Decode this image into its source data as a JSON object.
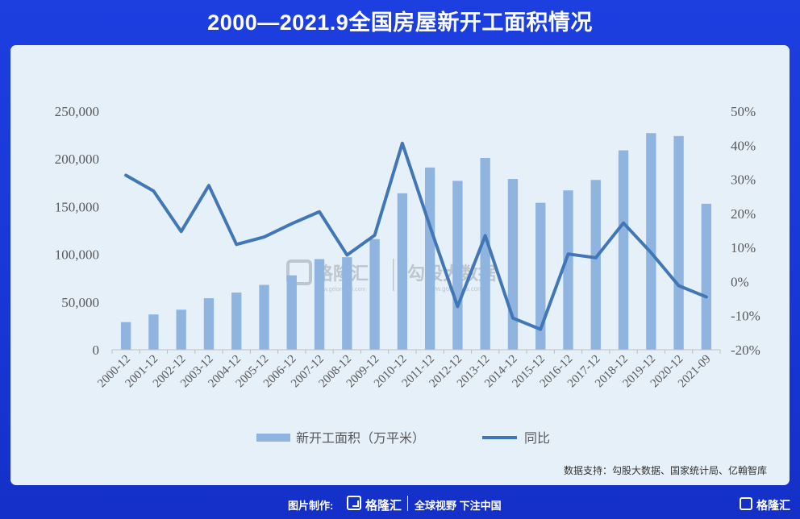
{
  "title": "2000—2021.9全国房屋新开工面积情况",
  "source": "数据支持：勾股大数据、国家统计局、亿翰智库",
  "watermark": {
    "brand": "格隆汇",
    "brand_url": "www.gelonghui.com",
    "sub_brand": "勾股大数据",
    "sub_url": "www.gogudata.com"
  },
  "footer": {
    "credit_label": "图片制作:",
    "brand": "格隆汇",
    "slogan": "全球视野 下注中国",
    "brand_right": "格隆汇"
  },
  "colors": {
    "bar": "#8fb4e0",
    "line": "#4177b6",
    "axis_text": "#595959",
    "card_bg": "#e6f0f9",
    "page_bg": "#1d3fe0"
  },
  "chart_data": {
    "type": "bar",
    "categories": [
      "2000-12",
      "2001-12",
      "2002-12",
      "2003-12",
      "2004-12",
      "2005-12",
      "2006-12",
      "2007-12",
      "2008-12",
      "2009-12",
      "2010-12",
      "2011-12",
      "2012-12",
      "2013-12",
      "2014-12",
      "2015-12",
      "2016-12",
      "2017-12",
      "2018-12",
      "2019-12",
      "2020-12",
      "2021-09"
    ],
    "series": [
      {
        "name": "新开工面积（万平米）",
        "type": "bar",
        "axis": "left",
        "values": [
          29000,
          37000,
          42000,
          54000,
          60000,
          68000,
          78000,
          95000,
          97000,
          116000,
          164000,
          191000,
          177000,
          201000,
          179000,
          154000,
          167000,
          178000,
          209000,
          227000,
          224000,
          153000
        ]
      },
      {
        "name": "同比",
        "type": "line",
        "axis": "right",
        "values": [
          31.2,
          26.6,
          14.7,
          28.2,
          10.9,
          13.1,
          17.0,
          20.5,
          7.8,
          13.6,
          40.6,
          16.2,
          -7.3,
          13.5,
          -10.7,
          -14.0,
          8.1,
          7.0,
          17.2,
          8.5,
          -1.2,
          -4.5
        ]
      }
    ],
    "yaxis_left": {
      "min": 0,
      "max": 250000,
      "ticks": [
        "0",
        "50,000",
        "100,000",
        "150,000",
        "200,000",
        "250,000"
      ]
    },
    "yaxis_right": {
      "min": -20,
      "max": 50,
      "ticks": [
        "-20%",
        "-10%",
        "0%",
        "10%",
        "20%",
        "30%",
        "40%",
        "50%"
      ]
    },
    "legend_position": "bottom",
    "grid": false
  }
}
